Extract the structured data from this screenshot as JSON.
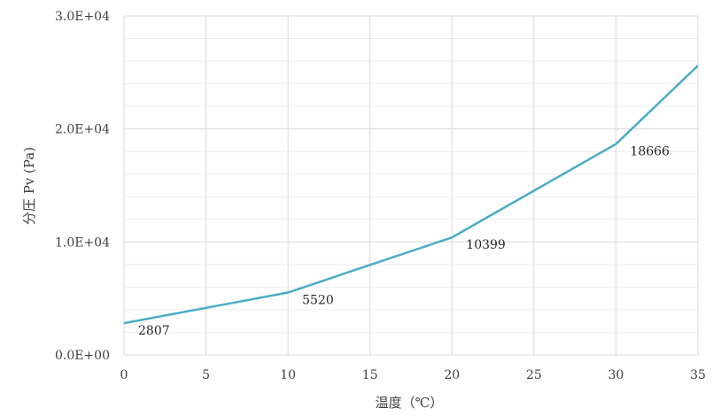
{
  "chart_data": {
    "type": "line",
    "title": "",
    "xlabel": "温度（℃）",
    "ylabel": "分圧 Pv (Pa)",
    "xlim": [
      0,
      35
    ],
    "ylim": [
      0,
      30000
    ],
    "x_ticks": [
      0,
      5,
      10,
      15,
      20,
      25,
      30,
      35
    ],
    "x_tick_labels": [
      "0",
      "5",
      "10",
      "15",
      "20",
      "25",
      "30",
      "35"
    ],
    "y_ticks": [
      0,
      10000,
      20000,
      30000
    ],
    "y_tick_labels": [
      "0.0E+00",
      "1.0E+04",
      "2.0E+04",
      "3.0E+04"
    ],
    "grid": {
      "major": true,
      "minor_y": true
    },
    "legend": "none",
    "series": [
      {
        "color": "#4bacc6",
        "x": [
          0,
          10,
          20,
          30,
          35
        ],
        "y": [
          2807,
          5520,
          10399,
          18666,
          25600
        ]
      }
    ],
    "data_labels": [
      {
        "x": 0,
        "y": 2807,
        "text": "2807"
      },
      {
        "x": 10,
        "y": 5520,
        "text": "5520"
      },
      {
        "x": 20,
        "y": 10399,
        "text": "10399"
      },
      {
        "x": 30,
        "y": 18666,
        "text": "18666"
      }
    ]
  }
}
